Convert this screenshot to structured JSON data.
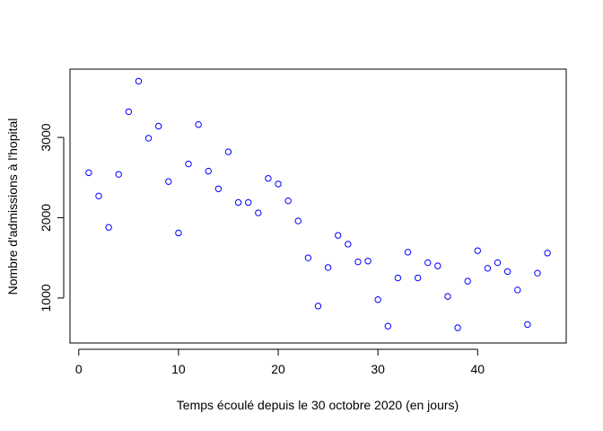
{
  "chart_data": {
    "type": "scatter",
    "title": "",
    "xlabel": "Temps écoulé depuis le 30 octobre 2020 (en jours)",
    "ylabel": "Nombre d'admissions à l'hopital",
    "xlim": [
      -0.88,
      48.88
    ],
    "ylim": [
      440,
      3850
    ],
    "xticks": [
      0,
      10,
      20,
      30,
      40
    ],
    "yticks": [
      1000,
      2000,
      3000
    ],
    "grid": false,
    "legend": "none",
    "point_color": "#0000ff",
    "x": [
      1,
      2,
      3,
      4,
      5,
      6,
      7,
      8,
      9,
      10,
      11,
      12,
      13,
      14,
      15,
      16,
      17,
      18,
      19,
      20,
      21,
      22,
      23,
      24,
      25,
      26,
      27,
      28,
      29,
      30,
      31,
      32,
      33,
      34,
      35,
      36,
      37,
      38,
      39,
      40,
      41,
      42,
      43,
      44,
      45,
      46,
      47
    ],
    "y": [
      2560,
      2270,
      1880,
      2540,
      3320,
      3700,
      2990,
      3140,
      2450,
      1810,
      2670,
      3160,
      2580,
      2360,
      2820,
      2190,
      2190,
      2060,
      2490,
      2420,
      2210,
      1960,
      1500,
      900,
      1380,
      1780,
      1670,
      1450,
      1460,
      980,
      650,
      1250,
      1570,
      1250,
      1440,
      1400,
      1020,
      630,
      1210,
      1590,
      1370,
      1440,
      1330,
      1100,
      670,
      1310,
      1560
    ]
  }
}
